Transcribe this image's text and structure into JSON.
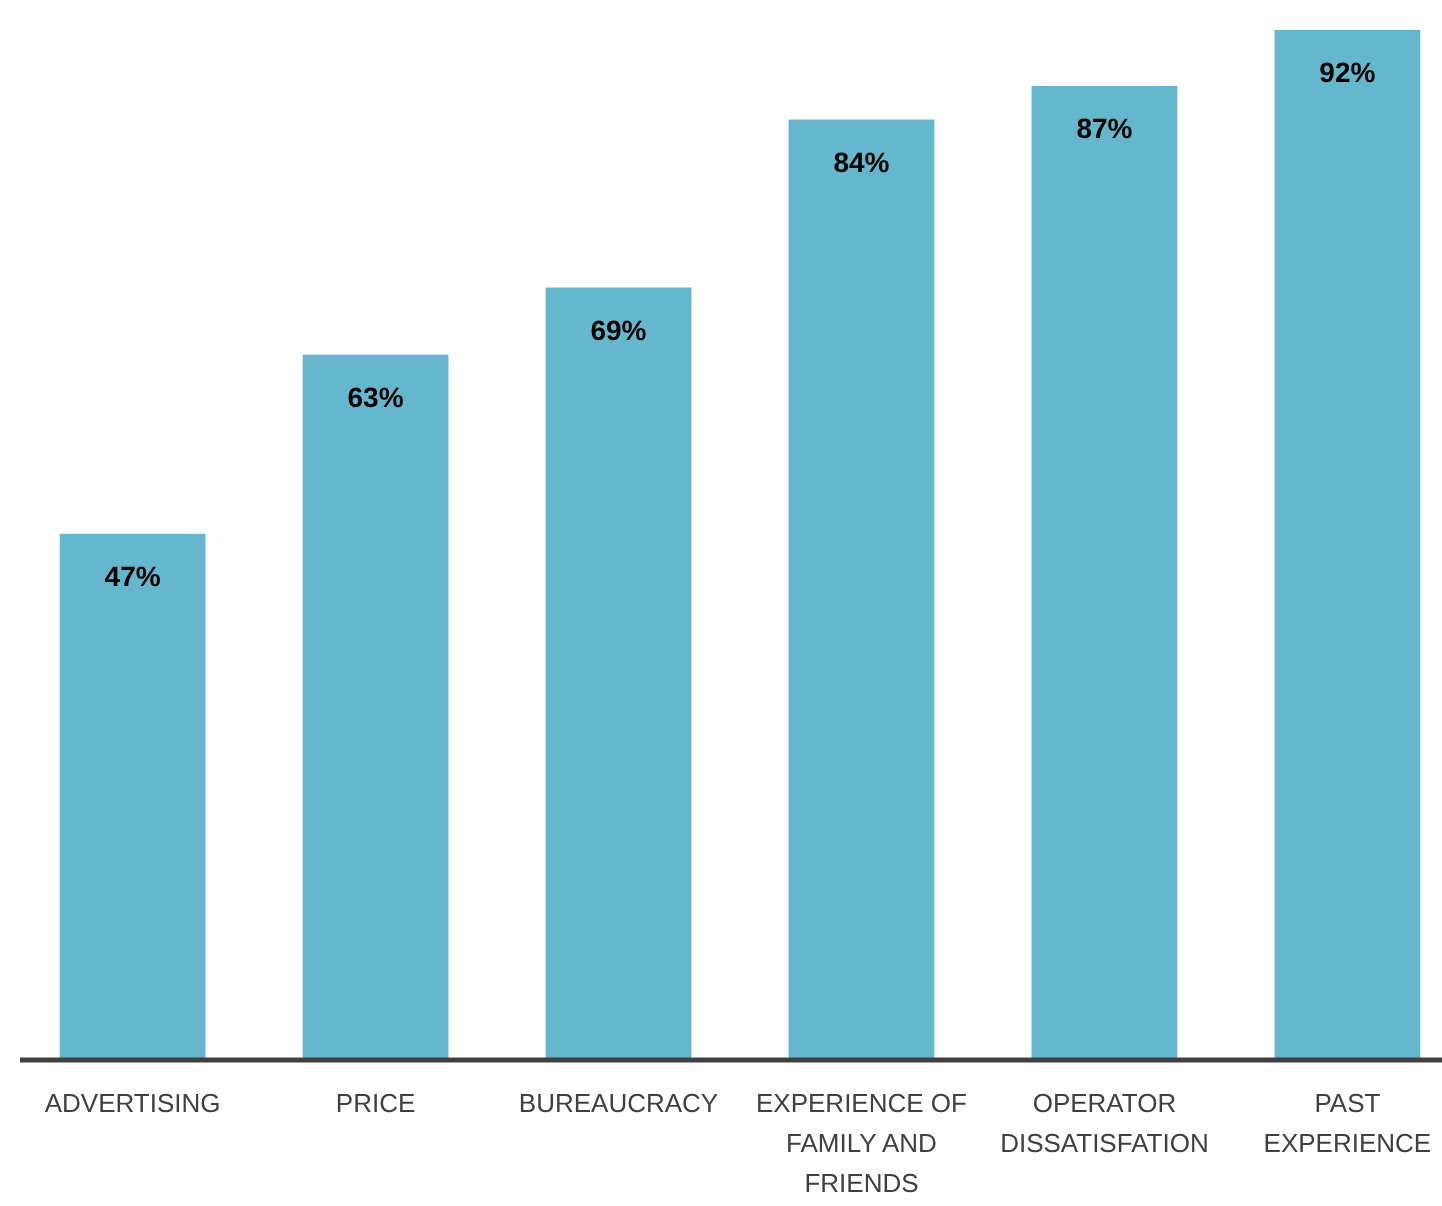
{
  "chart_data": {
    "type": "bar",
    "categories": [
      "ADVERTISING",
      "PRICE",
      "BUREAUCRACY",
      "EXPERIENCE OF FAMILY AND FRIENDS",
      "OPERATOR DISSATISFATION",
      "PAST EXPERIENCE"
    ],
    "values": [
      47,
      63,
      69,
      84,
      87,
      92
    ],
    "value_labels": [
      "47%",
      "63%",
      "69%",
      "84%",
      "87%",
      "92%"
    ],
    "color": "#64b7cd"
  }
}
